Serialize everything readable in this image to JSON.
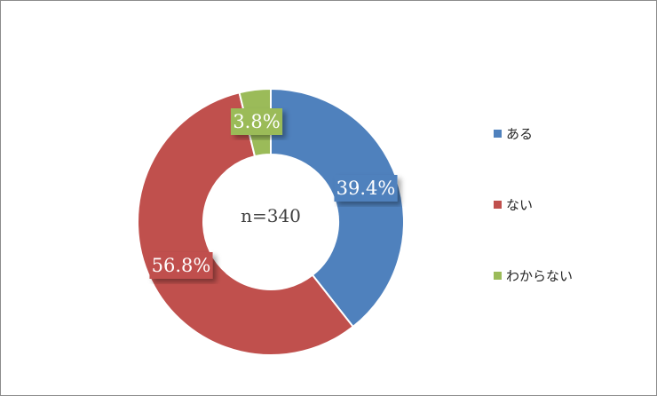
{
  "chart_data": {
    "type": "pie",
    "variant": "donut",
    "center_label": "n=340",
    "slices": [
      {
        "name": "ある",
        "value": 39.4,
        "label": "39.4%",
        "color": "#4f81bd"
      },
      {
        "name": "ない",
        "value": 56.8,
        "label": "56.8%",
        "color": "#c0504d"
      },
      {
        "name": "わからない",
        "value": 3.8,
        "label": "3.8%",
        "color": "#9bbb59"
      }
    ],
    "legend_placement": "right"
  }
}
